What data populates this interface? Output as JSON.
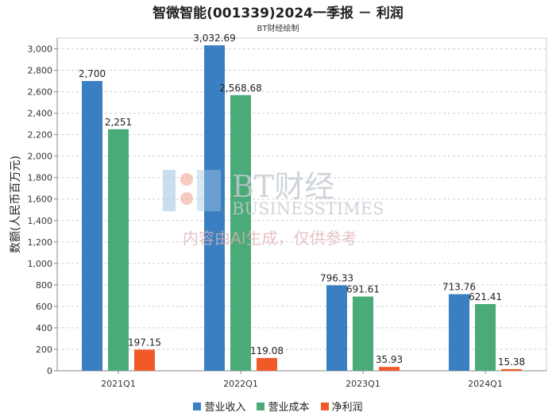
{
  "chart_data": {
    "type": "bar",
    "title": "智微智能(001339)2024一季报 － 利润",
    "subtitle": "BT财经绘制",
    "ylabel": "数额(人民币百万元)",
    "xlabel": "",
    "categories": [
      "2021Q1",
      "2022Q1",
      "2023Q1",
      "2024Q1"
    ],
    "ylim": [
      0,
      3100
    ],
    "yticks": [
      0,
      200,
      400,
      600,
      800,
      1000,
      1200,
      1400,
      1600,
      1800,
      2000,
      2200,
      2400,
      2600,
      2800,
      3000
    ],
    "ytick_labels": [
      "0",
      "200",
      "400",
      "600",
      "800",
      "1,000",
      "1,200",
      "1,400",
      "1,600",
      "1,800",
      "2,000",
      "2,200",
      "2,400",
      "2,600",
      "2,800",
      "3,000"
    ],
    "grid": true,
    "legend_position": "bottom",
    "series": [
      {
        "name": "营业收入",
        "color": "#3a7fc1",
        "values": [
          2700,
          3032.69,
          796.33,
          713.76
        ],
        "labels": [
          "2,700",
          "3,032.69",
          "796.33",
          "713.76"
        ]
      },
      {
        "name": "营业成本",
        "color": "#4aaa78",
        "values": [
          2251,
          2568.68,
          691.61,
          621.41
        ],
        "labels": [
          "2,251",
          "2,568.68",
          "691.61",
          "621.41"
        ]
      },
      {
        "name": "净利润",
        "color": "#f05a28",
        "values": [
          197.15,
          119.08,
          35.93,
          15.38
        ],
        "labels": [
          "197.15",
          "119.08",
          "35.93",
          "15.38"
        ]
      }
    ]
  },
  "watermark": {
    "logo_text": "BT财经",
    "sub_text": "BUSINESSTIMES",
    "note": "内容由AI生成，仅供参考"
  }
}
